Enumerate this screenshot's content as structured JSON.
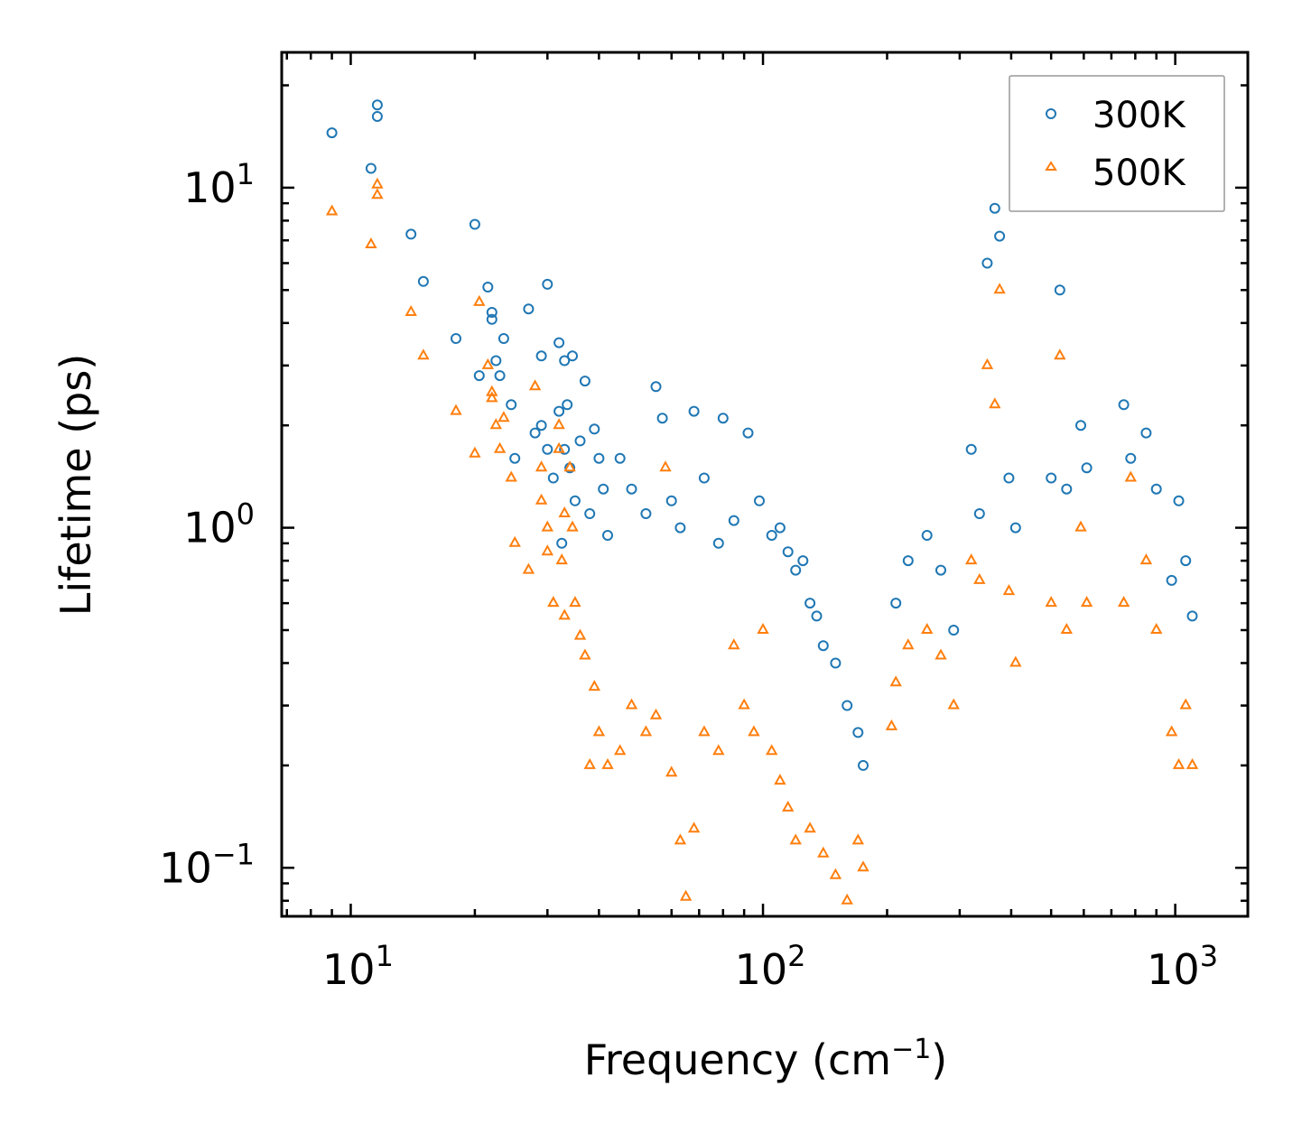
{
  "chart_data": {
    "type": "scatter",
    "title": "",
    "xlabel": "Frequency (cm",
    "xlabel_sup": "−1",
    "xlabel_end": ")",
    "ylabel": "Lifetime (ps)",
    "xscale": "log",
    "yscale": "log",
    "xlim": [
      6.8,
      1500
    ],
    "ylim": [
      0.072,
      25
    ],
    "x_ticks": [
      {
        "value": 10,
        "base": "10",
        "exp": "1"
      },
      {
        "value": 100,
        "base": "10",
        "exp": "2"
      },
      {
        "value": 1000,
        "base": "10",
        "exp": "3"
      }
    ],
    "y_ticks": [
      {
        "value": 0.1,
        "base": "10",
        "exp": "−1"
      },
      {
        "value": 1,
        "base": "10",
        "exp": "0"
      },
      {
        "value": 10,
        "base": "10",
        "exp": "1"
      }
    ],
    "legend_position": "top-right",
    "series": [
      {
        "name": "300K",
        "marker": "circle",
        "color": "#1f77b4",
        "points": [
          [
            9,
            14.5
          ],
          [
            11.2,
            11.4
          ],
          [
            11.6,
            17.5
          ],
          [
            11.6,
            16.2
          ],
          [
            14,
            7.3
          ],
          [
            15,
            5.3
          ],
          [
            18,
            3.6
          ],
          [
            20,
            7.8
          ],
          [
            20.5,
            2.8
          ],
          [
            21.5,
            5.1
          ],
          [
            22,
            4.3
          ],
          [
            22,
            4.1
          ],
          [
            22.5,
            3.1
          ],
          [
            23,
            2.8
          ],
          [
            23.5,
            3.6
          ],
          [
            24.5,
            2.3
          ],
          [
            25,
            1.6
          ],
          [
            27,
            4.4
          ],
          [
            28,
            1.9
          ],
          [
            29,
            2.0
          ],
          [
            29,
            3.2
          ],
          [
            30,
            5.2
          ],
          [
            30,
            1.7
          ],
          [
            31,
            1.4
          ],
          [
            32,
            3.5
          ],
          [
            32,
            2.2
          ],
          [
            32.5,
            0.9
          ],
          [
            33,
            1.7
          ],
          [
            33,
            3.1
          ],
          [
            33.5,
            2.3
          ],
          [
            34,
            1.5
          ],
          [
            34.5,
            3.2
          ],
          [
            35,
            1.2
          ],
          [
            36,
            1.8
          ],
          [
            37,
            2.7
          ],
          [
            38,
            1.1
          ],
          [
            39,
            1.95
          ],
          [
            40,
            1.6
          ],
          [
            41,
            1.3
          ],
          [
            42,
            0.95
          ],
          [
            45,
            1.6
          ],
          [
            48,
            1.3
          ],
          [
            52,
            1.1
          ],
          [
            55,
            2.6
          ],
          [
            57,
            2.1
          ],
          [
            60,
            1.2
          ],
          [
            63,
            1.0
          ],
          [
            68,
            2.2
          ],
          [
            72,
            1.4
          ],
          [
            78,
            0.9
          ],
          [
            80,
            2.1
          ],
          [
            85,
            1.05
          ],
          [
            92,
            1.9
          ],
          [
            98,
            1.2
          ],
          [
            105,
            0.95
          ],
          [
            110,
            1.0
          ],
          [
            115,
            0.85
          ],
          [
            120,
            0.75
          ],
          [
            125,
            0.8
          ],
          [
            130,
            0.6
          ],
          [
            135,
            0.55
          ],
          [
            140,
            0.45
          ],
          [
            150,
            0.4
          ],
          [
            160,
            0.3
          ],
          [
            170,
            0.25
          ],
          [
            175,
            0.2
          ],
          [
            210,
            0.6
          ],
          [
            225,
            0.8
          ],
          [
            250,
            0.95
          ],
          [
            270,
            0.75
          ],
          [
            290,
            0.5
          ],
          [
            320,
            1.7
          ],
          [
            335,
            1.1
          ],
          [
            350,
            6.0
          ],
          [
            365,
            8.7
          ],
          [
            375,
            7.2
          ],
          [
            395,
            1.4
          ],
          [
            410,
            1.0
          ],
          [
            500,
            1.4
          ],
          [
            525,
            5.0
          ],
          [
            545,
            1.3
          ],
          [
            590,
            2.0
          ],
          [
            610,
            1.5
          ],
          [
            750,
            2.3
          ],
          [
            780,
            1.6
          ],
          [
            850,
            1.9
          ],
          [
            900,
            1.3
          ],
          [
            980,
            0.7
          ],
          [
            1020,
            1.2
          ],
          [
            1060,
            0.8
          ],
          [
            1100,
            0.55
          ]
        ]
      },
      {
        "name": "500K",
        "marker": "triangle",
        "color": "#ff7f0e",
        "points": [
          [
            9,
            8.5
          ],
          [
            11.2,
            6.8
          ],
          [
            11.6,
            10.2
          ],
          [
            11.6,
            9.5
          ],
          [
            14,
            4.3
          ],
          [
            15,
            3.2
          ],
          [
            18,
            2.2
          ],
          [
            20,
            1.65
          ],
          [
            20.5,
            4.6
          ],
          [
            21.5,
            3.0
          ],
          [
            22,
            2.5
          ],
          [
            22,
            2.4
          ],
          [
            22.5,
            2.0
          ],
          [
            23,
            1.7
          ],
          [
            23.5,
            2.1
          ],
          [
            24.5,
            1.4
          ],
          [
            25,
            0.9
          ],
          [
            27,
            0.75
          ],
          [
            28,
            2.6
          ],
          [
            29,
            1.5
          ],
          [
            29,
            1.2
          ],
          [
            30,
            1.0
          ],
          [
            30,
            0.85
          ],
          [
            31,
            0.6
          ],
          [
            32,
            2.0
          ],
          [
            32,
            1.7
          ],
          [
            32.5,
            0.8
          ],
          [
            33,
            1.1
          ],
          [
            33,
            0.55
          ],
          [
            34,
            1.5
          ],
          [
            34.5,
            1.0
          ],
          [
            35,
            0.6
          ],
          [
            36,
            0.48
          ],
          [
            37,
            0.42
          ],
          [
            38,
            0.2
          ],
          [
            39,
            0.34
          ],
          [
            40,
            0.25
          ],
          [
            42,
            0.2
          ],
          [
            45,
            0.22
          ],
          [
            48,
            0.3
          ],
          [
            52,
            0.25
          ],
          [
            55,
            0.28
          ],
          [
            58,
            1.5
          ],
          [
            60,
            0.19
          ],
          [
            63,
            0.12
          ],
          [
            65,
            0.082
          ],
          [
            68,
            0.13
          ],
          [
            72,
            0.25
          ],
          [
            78,
            0.22
          ],
          [
            85,
            0.45
          ],
          [
            90,
            0.3
          ],
          [
            95,
            0.25
          ],
          [
            100,
            0.5
          ],
          [
            105,
            0.22
          ],
          [
            110,
            0.18
          ],
          [
            115,
            0.15
          ],
          [
            120,
            0.12
          ],
          [
            130,
            0.13
          ],
          [
            140,
            0.11
          ],
          [
            150,
            0.095
          ],
          [
            160,
            0.08
          ],
          [
            170,
            0.12
          ],
          [
            175,
            0.1
          ],
          [
            205,
            0.26
          ],
          [
            210,
            0.35
          ],
          [
            225,
            0.45
          ],
          [
            250,
            0.5
          ],
          [
            270,
            0.42
          ],
          [
            290,
            0.3
          ],
          [
            320,
            0.8
          ],
          [
            335,
            0.7
          ],
          [
            350,
            3.0
          ],
          [
            365,
            2.3
          ],
          [
            375,
            5.0
          ],
          [
            395,
            0.65
          ],
          [
            410,
            0.4
          ],
          [
            500,
            0.6
          ],
          [
            525,
            3.2
          ],
          [
            545,
            0.5
          ],
          [
            590,
            1.0
          ],
          [
            610,
            0.6
          ],
          [
            750,
            0.6
          ],
          [
            780,
            1.4
          ],
          [
            850,
            0.8
          ],
          [
            900,
            0.5
          ],
          [
            980,
            0.25
          ],
          [
            1020,
            0.2
          ],
          [
            1060,
            0.3
          ],
          [
            1100,
            0.2
          ]
        ]
      }
    ]
  }
}
